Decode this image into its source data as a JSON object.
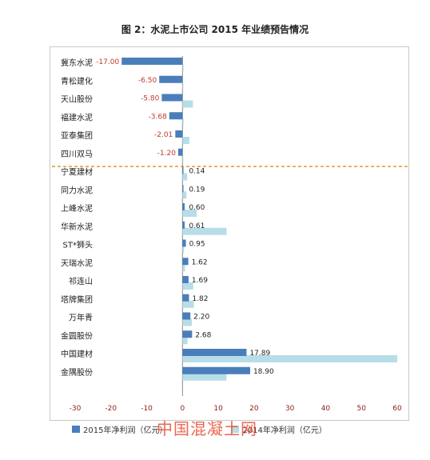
{
  "chart_data": {
    "type": "bar",
    "orientation": "horizontal",
    "title": "图 2：水泥上市公司 2015 年业绩预告情况",
    "categories": [
      "冀东水泥",
      "青松建化",
      "天山股份",
      "福建水泥",
      "亚泰集团",
      "四川双马",
      "宁夏建材",
      "同力水泥",
      "上峰水泥",
      "华新水泥",
      "ST*狮头",
      "天瑞水泥",
      "祁连山",
      "塔牌集团",
      "万年青",
      "金圆股份",
      "中国建材",
      "金隅股份"
    ],
    "series": [
      {
        "name": "2015年净利润（亿元）",
        "color": "#4a7ebb",
        "values": [
          -17.0,
          -6.5,
          -5.8,
          -3.68,
          -2.01,
          -1.2,
          0.14,
          0.19,
          0.6,
          0.61,
          0.95,
          1.62,
          1.69,
          1.82,
          2.2,
          2.68,
          17.89,
          18.9
        ]
      },
      {
        "name": "2014年净利润（亿元）",
        "color": "#b7dde8",
        "values": [
          0.3,
          0.2,
          2.9,
          0.3,
          1.9,
          0.2,
          1.3,
          1.1,
          4.0,
          12.3,
          0.4,
          0.7,
          3.0,
          3.2,
          2.6,
          1.4,
          60,
          12.3
        ]
      }
    ],
    "data_labels": [
      "-17.00",
      "-6.50",
      "-5.80",
      "-3.68",
      "-2.01",
      "-1.20",
      "0.14",
      "0.19",
      "0.60",
      "0.61",
      "0.95",
      "1.62",
      "1.69",
      "1.82",
      "2.20",
      "2.68",
      "17.89",
      "18.90"
    ],
    "x_ticks": [
      -30,
      -20,
      -10,
      0,
      10,
      20,
      30,
      40,
      50,
      60
    ],
    "xlim": [
      -30,
      60
    ],
    "separator_after_index": 5,
    "legend_position": "bottom"
  },
  "legend": {
    "item_2015": "2015年净利润（亿元）",
    "item_2014": "2014年净利润（亿元）"
  },
  "watermark": "中国混凝土网"
}
